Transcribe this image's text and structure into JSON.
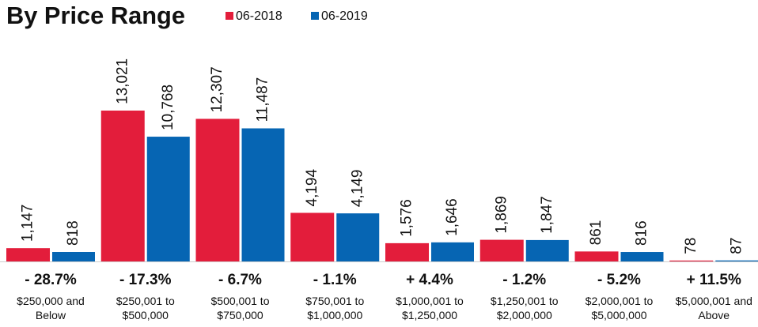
{
  "chart_data": {
    "type": "bar",
    "title": "By Price Range",
    "categories": [
      "$250,000 and\nBelow",
      "$250,001 to\n$500,000",
      "$500,001 to\n$750,000",
      "$750,001 to\n$1,000,000",
      "$1,000,001 to\n$1,250,000",
      "$1,250,001 to\n$2,000,000",
      "$2,000,001 to\n$5,000,000",
      "$5,000,001 and\nAbove"
    ],
    "series": [
      {
        "name": "06-2018",
        "color": "#e31d3b",
        "values": [
          1147,
          13021,
          12307,
          4194,
          1576,
          1869,
          861,
          78
        ],
        "value_labels": [
          "1,147",
          "13,021",
          "12,307",
          "4,194",
          "1,576",
          "1,869",
          "861",
          "78"
        ]
      },
      {
        "name": "06-2019",
        "color": "#0665b3",
        "values": [
          818,
          10768,
          11487,
          4149,
          1646,
          1847,
          816,
          87
        ],
        "value_labels": [
          "818",
          "10,768",
          "11,487",
          "4,149",
          "1,646",
          "1,847",
          "816",
          "87"
        ]
      }
    ],
    "annotations": [
      "- 28.7%",
      "- 17.3%",
      "- 6.7%",
      "- 1.1%",
      "+ 4.4%",
      "- 1.2%",
      "- 5.2%",
      "+ 11.5%"
    ]
  }
}
